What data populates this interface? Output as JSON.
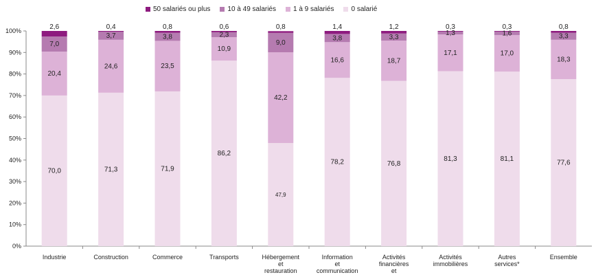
{
  "chart_data": {
    "type": "bar",
    "stacked": true,
    "categories": [
      "Industrie",
      "Construction",
      "Commerce",
      "Transports",
      "Hébergement et restauration",
      "Information et communication",
      "Activités financières et d'assurance",
      "Activités immobilières",
      "Autres services*",
      "Ensemble"
    ],
    "series": [
      {
        "name": "0 salarié",
        "color": "#efdceb",
        "values": [
          70.0,
          71.3,
          71.9,
          86.2,
          47.9,
          78.2,
          76.8,
          81.3,
          81.1,
          77.6
        ],
        "labels": [
          "70,0",
          "71,3",
          "71,9",
          "86,2",
          "47,9",
          "78,2",
          "76,8",
          "81,3",
          "81,1",
          "77,6"
        ]
      },
      {
        "name": "1 à 9 salariés",
        "color": "#ddb2d7",
        "values": [
          20.4,
          24.6,
          23.5,
          10.9,
          42.2,
          16.6,
          18.7,
          17.1,
          17.0,
          18.3
        ],
        "labels": [
          "20,4",
          "24,6",
          "23,5",
          "10,9",
          "42,2",
          "16,6",
          "18,7",
          "17,1",
          "17,0",
          "18,3"
        ]
      },
      {
        "name": "10 à 49 salariés",
        "color": "#b57bb0",
        "values": [
          7.0,
          3.7,
          3.8,
          2.3,
          9.0,
          3.8,
          3.3,
          1.3,
          1.6,
          3.3
        ],
        "labels": [
          "7,0",
          "3,7",
          "3,8",
          "2,3",
          "9,0",
          "3,8",
          "3,3",
          "1,3",
          "1,6",
          "3,3"
        ]
      },
      {
        "name": "50 salariés ou plus",
        "color": "#8e1b7f",
        "values": [
          2.6,
          0.4,
          0.8,
          0.6,
          0.8,
          1.4,
          1.2,
          0.3,
          0.3,
          0.8
        ],
        "labels": [
          "2,6",
          "0,4",
          "0,8",
          "0,6",
          "0,8",
          "1,4",
          "1,2",
          "0,3",
          "0,3",
          "0,8"
        ]
      }
    ],
    "legend_order": [
      "50 salariés ou plus",
      "10 à 49 salariés",
      "1 à 9 salariés",
      "0 salarié"
    ],
    "y_ticks": [
      "0%",
      "10%",
      "20%",
      "30%",
      "40%",
      "50%",
      "60%",
      "70%",
      "80%",
      "90%",
      "100%"
    ],
    "ylim": [
      0,
      100
    ],
    "legend_position": "top",
    "grid": false
  }
}
